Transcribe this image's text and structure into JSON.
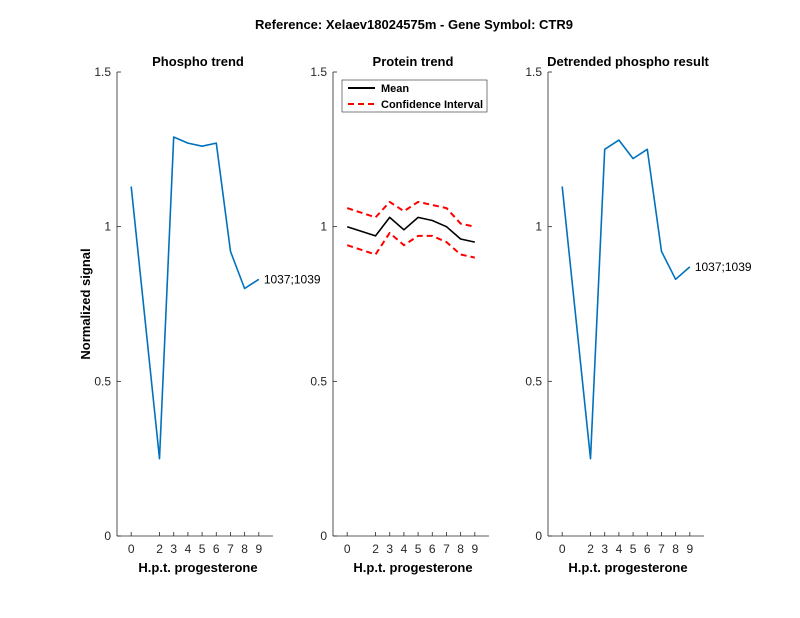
{
  "figure_title": "Reference:  Xelaev18024575m - Gene Symbol:  CTR9",
  "chart_data": [
    {
      "type": "line",
      "title": "Phospho trend",
      "xlabel": "H.p.t. progesterone",
      "ylabel": "Normalized signal",
      "x": [
        0,
        2,
        3,
        4,
        5,
        6,
        7,
        8,
        9
      ],
      "xticks": [
        "0",
        "2",
        "3",
        "4",
        "5",
        "6",
        "7",
        "8",
        "9"
      ],
      "yticks": [
        "0",
        "0.5",
        "1",
        "1.5"
      ],
      "ylim": [
        0,
        1.5
      ],
      "series": [
        {
          "values": [
            1.13,
            0.25,
            1.29,
            1.27,
            1.26,
            1.27,
            0.92,
            0.8,
            0.83
          ],
          "color": "#0072BD",
          "style": "solid"
        }
      ],
      "annotation": "1037;1039",
      "grid": false
    },
    {
      "type": "line",
      "title": "Protein trend",
      "xlabel": "H.p.t. progesterone",
      "ylabel": "",
      "x": [
        0,
        2,
        3,
        4,
        5,
        6,
        7,
        8,
        9
      ],
      "xticks": [
        "0",
        "2",
        "3",
        "4",
        "5",
        "6",
        "7",
        "8",
        "9"
      ],
      "yticks": [
        "0",
        "0.5",
        "1",
        "1.5"
      ],
      "ylim": [
        0,
        1.5
      ],
      "series": [
        {
          "name": "Mean",
          "values": [
            1.0,
            0.97,
            1.03,
            0.99,
            1.03,
            1.02,
            1.0,
            0.96,
            0.95
          ],
          "color": "#000000",
          "style": "solid"
        },
        {
          "name": "Confidence Interval",
          "values": [
            1.06,
            1.03,
            1.08,
            1.05,
            1.08,
            1.07,
            1.06,
            1.01,
            1.0
          ],
          "color": "#FF0000",
          "style": "dashed"
        },
        {
          "values": [
            0.94,
            0.91,
            0.98,
            0.94,
            0.97,
            0.97,
            0.95,
            0.91,
            0.9
          ],
          "color": "#FF0000",
          "style": "dashed"
        }
      ],
      "legend": {
        "placement": "top-left",
        "entries": [
          "Mean",
          "Confidence Interval"
        ]
      },
      "grid": false
    },
    {
      "type": "line",
      "title": "Detrended phospho result",
      "xlabel": "H.p.t. progesterone",
      "ylabel": "",
      "x": [
        0,
        2,
        3,
        4,
        5,
        6,
        7,
        8,
        9
      ],
      "xticks": [
        "0",
        "2",
        "3",
        "4",
        "5",
        "6",
        "7",
        "8",
        "9"
      ],
      "yticks": [
        "0",
        "0.5",
        "1",
        "1.5"
      ],
      "ylim": [
        0,
        1.5
      ],
      "series": [
        {
          "values": [
            1.13,
            0.25,
            1.25,
            1.28,
            1.22,
            1.25,
            0.92,
            0.83,
            0.87
          ],
          "color": "#0072BD",
          "style": "solid"
        }
      ],
      "annotation": "1037;1039",
      "grid": false
    }
  ]
}
